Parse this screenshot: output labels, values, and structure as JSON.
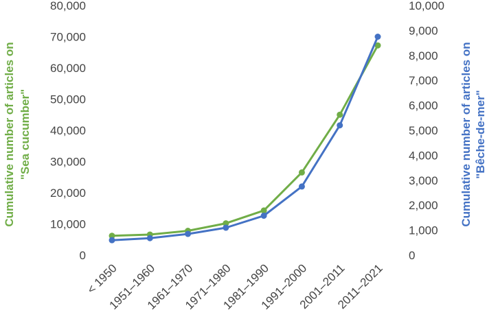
{
  "chart_data": {
    "type": "line",
    "categories": [
      "< 1950",
      "1951–1960",
      "1961–1970",
      "1971–1980",
      "1981–1990",
      "1991–2000",
      "2001–2011",
      "2011–2021"
    ],
    "series": [
      {
        "name": "Sea cucumber",
        "axis": "left",
        "color": "#70ad47",
        "values": [
          6200,
          6600,
          7800,
          10200,
          14300,
          26500,
          45000,
          67200
        ]
      },
      {
        "name": "Bêche-de-mer",
        "axis": "right",
        "color": "#4472c4",
        "values": [
          600,
          680,
          850,
          1100,
          1580,
          2750,
          5200,
          8750
        ]
      }
    ],
    "y_left": {
      "label_line1": "Cumulative number of articles on",
      "label_line2": "\"Sea cucumber\"",
      "lim": [
        0,
        80000
      ],
      "ticks": [
        "0",
        "10,000",
        "20,000",
        "30,000",
        "40,000",
        "50,000",
        "60,000",
        "70,000",
        "80,000"
      ],
      "color": "#70ad47"
    },
    "y_right": {
      "label_line1": "Cumulative number of articles on",
      "label_line2": "\"Bêche-de-mer\"",
      "lim": [
        0,
        10000
      ],
      "ticks": [
        "0",
        "1,000",
        "2,000",
        "3,000",
        "4,000",
        "5,000",
        "6,000",
        "7,000",
        "8,000",
        "9,000",
        "10,000"
      ],
      "color": "#4472c4"
    },
    "grid": false,
    "legend": "none"
  }
}
